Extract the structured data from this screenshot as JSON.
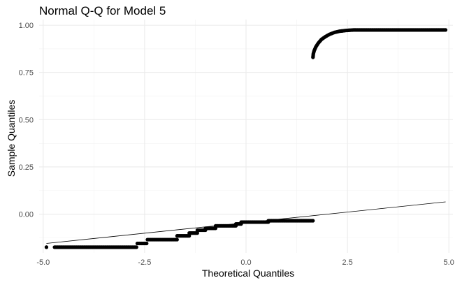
{
  "chart_data": {
    "type": "scatter",
    "title": "Normal Q-Q for Model 5",
    "xlabel": "Theoretical Quantiles",
    "ylabel": "Sample Quantiles",
    "xlim": [
      -5.1,
      5.1
    ],
    "ylim": [
      -0.205,
      1.03
    ],
    "grid": true,
    "legend": "none",
    "x_ticks": [
      {
        "value": -5.0,
        "label": "-5.0"
      },
      {
        "value": -2.5,
        "label": "-2.5"
      },
      {
        "value": 0.0,
        "label": "0.0"
      },
      {
        "value": 2.5,
        "label": "2.5"
      },
      {
        "value": 5.0,
        "label": "5.0"
      }
    ],
    "y_ticks": [
      {
        "value": 0.0,
        "label": "0.00"
      },
      {
        "value": 0.25,
        "label": "0.25"
      },
      {
        "value": 0.5,
        "label": "0.50"
      },
      {
        "value": 0.75,
        "label": "0.75"
      },
      {
        "value": 1.0,
        "label": "1.00"
      }
    ],
    "reference_line": {
      "x": [
        -4.92,
        4.92
      ],
      "y": [
        -0.155,
        0.065
      ]
    },
    "point_runs": [
      {
        "x_start": -4.92,
        "x_end": -4.92,
        "y": -0.175
      },
      {
        "x_start": -4.72,
        "x_end": -2.7,
        "y": -0.175
      },
      {
        "x_start": -2.68,
        "x_end": -2.45,
        "y": -0.155
      },
      {
        "x_start": -2.43,
        "x_end": -1.7,
        "y": -0.135
      },
      {
        "x_start": -1.7,
        "x_end": -1.4,
        "y": -0.115
      },
      {
        "x_start": -1.4,
        "x_end": -1.2,
        "y": -0.1
      },
      {
        "x_start": -1.2,
        "x_end": -1.0,
        "y": -0.085
      },
      {
        "x_start": -1.0,
        "x_end": -0.75,
        "y": -0.075
      },
      {
        "x_start": -0.75,
        "x_end": -0.25,
        "y": -0.062
      },
      {
        "x_start": -0.25,
        "x_end": -0.12,
        "y": -0.052
      },
      {
        "x_start": -0.12,
        "x_end": 0.55,
        "y": -0.042
      },
      {
        "x_start": 0.55,
        "x_end": 1.65,
        "y": -0.035
      }
    ],
    "upper_curve": [
      {
        "x": 1.65,
        "y": 0.83
      },
      {
        "x": 1.66,
        "y": 0.85
      },
      {
        "x": 1.68,
        "y": 0.865
      },
      {
        "x": 1.72,
        "y": 0.885
      },
      {
        "x": 1.78,
        "y": 0.905
      },
      {
        "x": 1.86,
        "y": 0.925
      },
      {
        "x": 1.96,
        "y": 0.94
      },
      {
        "x": 2.06,
        "y": 0.952
      },
      {
        "x": 2.18,
        "y": 0.962
      },
      {
        "x": 2.3,
        "y": 0.968
      },
      {
        "x": 2.45,
        "y": 0.972
      },
      {
        "x": 2.65,
        "y": 0.975
      },
      {
        "x": 3.0,
        "y": 0.975
      },
      {
        "x": 3.5,
        "y": 0.975
      },
      {
        "x": 4.0,
        "y": 0.975
      },
      {
        "x": 4.5,
        "y": 0.975
      },
      {
        "x": 4.72,
        "y": 0.975
      },
      {
        "x": 4.92,
        "y": 0.975
      }
    ]
  }
}
